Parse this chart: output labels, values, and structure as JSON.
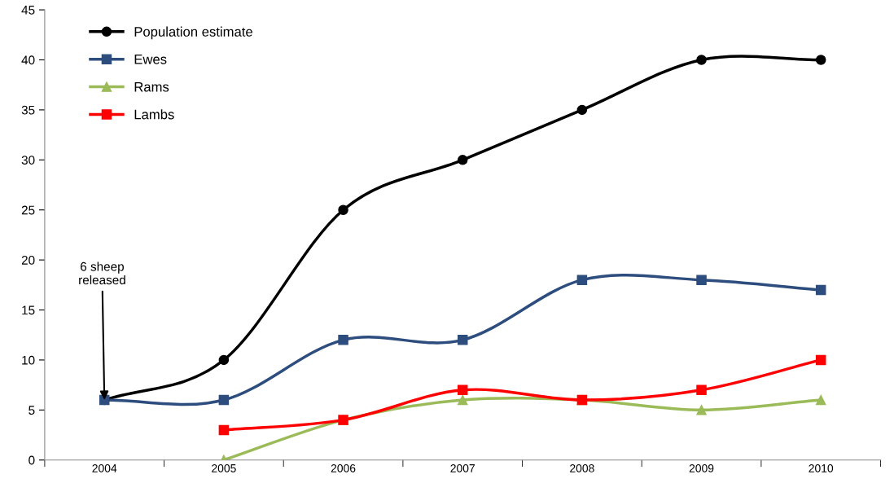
{
  "chart_data": {
    "type": "line",
    "categories": [
      "2004",
      "2005",
      "2006",
      "2007",
      "2008",
      "2009",
      "2010"
    ],
    "series": [
      {
        "name": "Population estimate",
        "color": "#000000",
        "marker": "circle",
        "values": [
          6,
          10,
          25,
          30,
          35,
          40,
          40
        ]
      },
      {
        "name": "Ewes",
        "color": "#2c4d7e",
        "marker": "square",
        "values": [
          6,
          6,
          12,
          12,
          18,
          18,
          17
        ]
      },
      {
        "name": "Rams",
        "color": "#9bbb59",
        "marker": "triangle",
        "values": [
          null,
          0,
          4,
          6,
          6,
          5,
          6
        ]
      },
      {
        "name": "Lambs",
        "color": "#ff0000",
        "marker": "square",
        "values": [
          null,
          3,
          4,
          7,
          6,
          7,
          10
        ]
      }
    ],
    "ylim": [
      0,
      45
    ],
    "yticks": [
      0,
      5,
      10,
      15,
      20,
      25,
      30,
      35,
      40,
      45
    ],
    "grid": false,
    "legend": "top left",
    "line_style": "solid",
    "annotations": [
      {
        "text": "6 sheep\nreleased",
        "x": "2004",
        "y": 6
      }
    ]
  }
}
